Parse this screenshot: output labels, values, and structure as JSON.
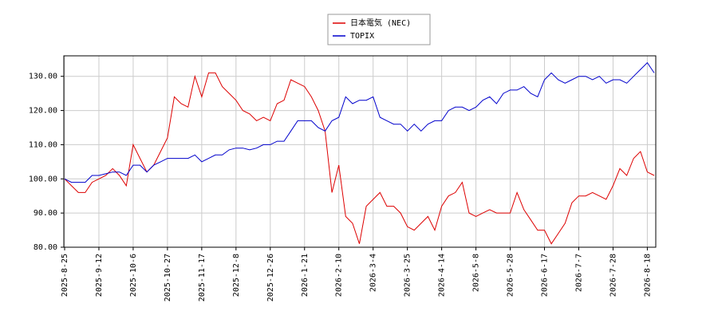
{
  "chart_data": {
    "type": "line",
    "categories": [
      "2025-8-25",
      null,
      null,
      null,
      null,
      "2025-9-12",
      null,
      null,
      null,
      null,
      "2025-10-6",
      null,
      null,
      null,
      null,
      "2025-10-27",
      null,
      null,
      null,
      null,
      "2025-11-17",
      null,
      null,
      null,
      null,
      "2025-12-8",
      null,
      null,
      null,
      null,
      "2025-12-26",
      null,
      null,
      null,
      null,
      "2026-1-21",
      null,
      null,
      null,
      null,
      "2026-2-10",
      null,
      null,
      null,
      null,
      "2026-3-4",
      null,
      null,
      null,
      null,
      "2026-3-25",
      null,
      null,
      null,
      null,
      "2026-4-14",
      null,
      null,
      null,
      null,
      "2026-5-8",
      null,
      null,
      null,
      null,
      "2026-5-28",
      null,
      null,
      null,
      null,
      "2026-6-17",
      null,
      null,
      null,
      null,
      "2026-7-7",
      null,
      null,
      null,
      null,
      "2026-7-28",
      null,
      null,
      null,
      null,
      "2026-8-18",
      null
    ],
    "series": [
      {
        "name": "日本電気 (NEC)",
        "color": "#dd0000",
        "values": [
          100,
          98,
          96,
          96,
          99,
          100,
          101,
          103,
          101,
          98,
          110,
          106,
          102,
          104,
          108,
          112,
          124,
          122,
          121,
          130,
          124,
          131,
          131,
          127,
          125,
          123,
          120,
          119,
          117,
          118,
          117,
          122,
          123,
          129,
          128,
          127,
          124,
          120,
          114,
          96,
          104,
          89,
          87,
          81,
          92,
          94,
          96,
          92,
          92,
          90,
          86,
          85,
          87,
          89,
          85,
          92,
          95,
          96,
          99,
          90,
          89,
          90,
          91,
          90,
          90,
          90,
          96,
          91,
          88,
          85,
          85,
          81,
          84,
          87,
          93,
          95,
          95,
          96,
          95,
          94,
          98,
          103,
          101,
          106,
          108,
          102,
          101
        ]
      },
      {
        "name": "TOPIX",
        "color": "#0000cc",
        "values": [
          100,
          99,
          99,
          99,
          101,
          101,
          101.5,
          102,
          102,
          101,
          104,
          104,
          102,
          104,
          105,
          106,
          106,
          106,
          106,
          107,
          105,
          106,
          107,
          107,
          108.5,
          109,
          109,
          108.5,
          109,
          110,
          110,
          111,
          111,
          114,
          117,
          117,
          117,
          115,
          114,
          117,
          118,
          124,
          122,
          123,
          123,
          124,
          118,
          117,
          116,
          116,
          114,
          116,
          114,
          116,
          117,
          117,
          120,
          121,
          121,
          120,
          121,
          123,
          124,
          122,
          125,
          126,
          126,
          127,
          125,
          124,
          129,
          131,
          129,
          128,
          129,
          130,
          130,
          129,
          130,
          128,
          129,
          129,
          128,
          130,
          132,
          134,
          131
        ]
      }
    ],
    "ylim": [
      80,
      136
    ],
    "yticks": [
      {
        "value": 80,
        "label": "80.00"
      },
      {
        "value": 90,
        "label": "90.00"
      },
      {
        "value": 100,
        "label": "100.00"
      },
      {
        "value": 110,
        "label": "110.00"
      },
      {
        "value": 120,
        "label": "120.00"
      },
      {
        "value": 130,
        "label": "130.00"
      }
    ],
    "grid": true,
    "legend": "top"
  }
}
